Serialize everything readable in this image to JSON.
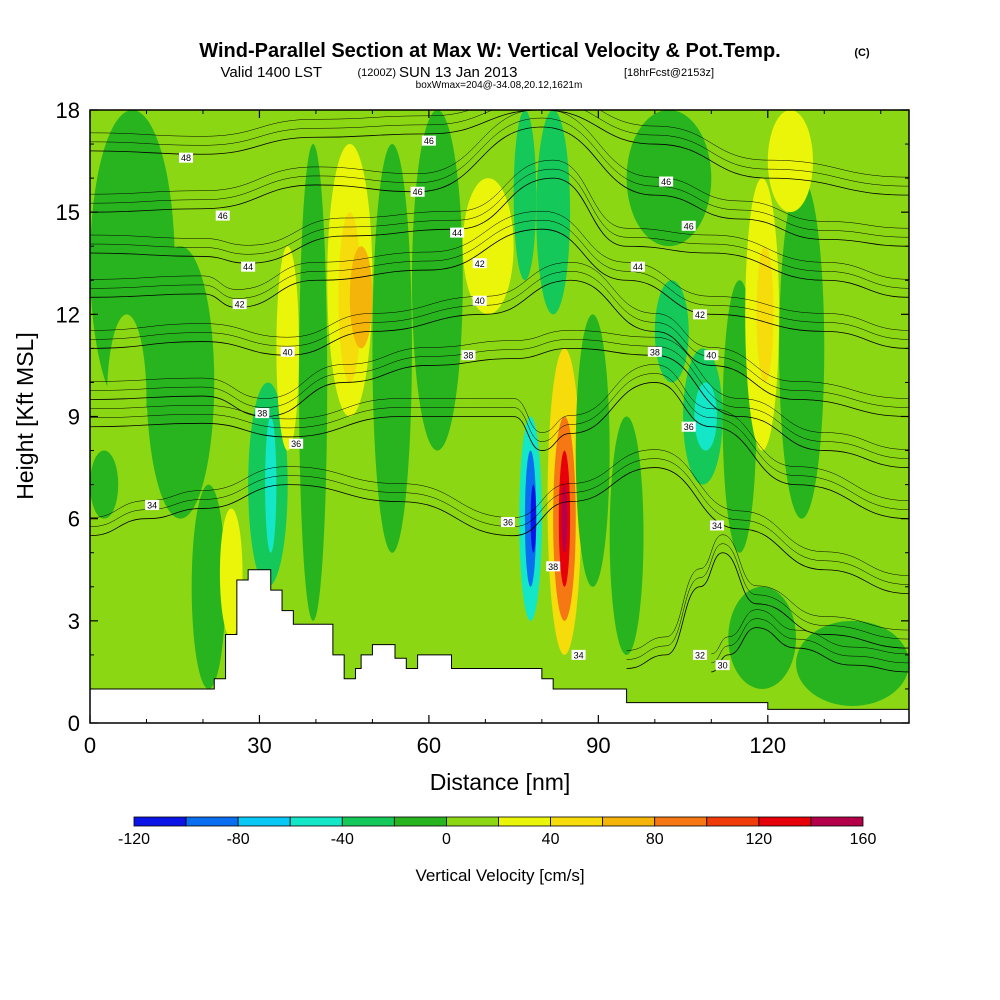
{
  "chart_data": {
    "type": "heatmap",
    "title": "Wind-Parallel Section at Max W: Vertical Velocity & Pot.Temp.",
    "title_mark": "(C)",
    "subtitle_main": "Valid 1400 LST",
    "subtitle_utc": "(1200Z)",
    "subtitle_date": "SUN 13 Jan 2013",
    "subtitle_fcst": "[18hrFcst@2153z]",
    "subtitle_box": "boxWmax=204@-34.08,20.12,1621m",
    "xlabel": "Distance [nm]",
    "ylabel": "Height [Kft MSL]",
    "xlim": [
      0,
      145
    ],
    "ylim": [
      0,
      18
    ],
    "xticks": [
      "0",
      "30",
      "60",
      "90",
      "120"
    ],
    "xtick_values": [
      0,
      30,
      60,
      90,
      120
    ],
    "yticks": [
      "0",
      "3",
      "6",
      "9",
      "12",
      "15",
      "18"
    ],
    "ytick_values": [
      0,
      3,
      6,
      9,
      12,
      15,
      18
    ],
    "colorbar": {
      "label": "Vertical Velocity [cm/s]",
      "ticks": [
        "-120",
        "-80",
        "-40",
        "0",
        "40",
        "80",
        "120",
        "160"
      ],
      "levels": [
        -120,
        -100,
        -80,
        -60,
        -40,
        -20,
        0,
        20,
        40,
        60,
        80,
        100,
        120,
        140,
        160
      ],
      "colors": [
        "#0a14e6",
        "#0a6ef0",
        "#0ac8f5",
        "#14e6c8",
        "#14c85a",
        "#28b41e",
        "#8cd714",
        "#ebf50a",
        "#f5dc0a",
        "#f5b40a",
        "#f57814",
        "#f03c0a",
        "#e6000a",
        "#b4004b"
      ]
    },
    "background_w": 5,
    "w_cells": [
      {
        "x": [
          0,
          15
        ],
        "y": [
          9,
          18
        ],
        "w": -10
      },
      {
        "x": [
          10,
          22
        ],
        "y": [
          6,
          14
        ],
        "w": -10
      },
      {
        "x": [
          3,
          10
        ],
        "y": [
          7,
          12
        ],
        "w": 5
      },
      {
        "x": [
          0,
          5
        ],
        "y": [
          6,
          8
        ],
        "w": -10
      },
      {
        "x": [
          0,
          18
        ],
        "y": [
          1,
          5
        ],
        "w": 5
      },
      {
        "x": [
          18,
          24
        ],
        "y": [
          1,
          7
        ],
        "w": -10
      },
      {
        "x": [
          23,
          27
        ],
        "y": [
          2.5,
          6.3
        ],
        "w": 30
      },
      {
        "x": [
          28,
          35
        ],
        "y": [
          4,
          10
        ],
        "w": -30
      },
      {
        "x": [
          31,
          33
        ],
        "y": [
          5,
          9
        ],
        "w": -50
      },
      {
        "x": [
          33,
          37
        ],
        "y": [
          8,
          14
        ],
        "w": 30
      },
      {
        "x": [
          37,
          42
        ],
        "y": [
          3,
          17
        ],
        "w": -10
      },
      {
        "x": [
          42,
          50
        ],
        "y": [
          9,
          17
        ],
        "w": 30
      },
      {
        "x": [
          44,
          48
        ],
        "y": [
          10,
          15
        ],
        "w": 50
      },
      {
        "x": [
          46,
          50
        ],
        "y": [
          11,
          14
        ],
        "w": 70
      },
      {
        "x": [
          50,
          57
        ],
        "y": [
          5,
          17
        ],
        "w": -10
      },
      {
        "x": [
          57,
          66
        ],
        "y": [
          8,
          18
        ],
        "w": -15
      },
      {
        "x": [
          66,
          75
        ],
        "y": [
          12,
          16
        ],
        "w": 30
      },
      {
        "x": [
          75,
          79
        ],
        "y": [
          13,
          18
        ],
        "w": -30
      },
      {
        "x": [
          79,
          85
        ],
        "y": [
          12,
          18
        ],
        "w": -30
      },
      {
        "x": [
          76,
          80
        ],
        "y": [
          3,
          9
        ],
        "w": -50
      },
      {
        "x": [
          77,
          79
        ],
        "y": [
          4,
          8
        ],
        "w": -90
      },
      {
        "x": [
          78,
          79
        ],
        "y": [
          5,
          7
        ],
        "w": -120
      },
      {
        "x": [
          81,
          87
        ],
        "y": [
          2,
          11
        ],
        "w": 50
      },
      {
        "x": [
          82,
          86
        ],
        "y": [
          3,
          9
        ],
        "w": 90
      },
      {
        "x": [
          83,
          85
        ],
        "y": [
          4,
          8
        ],
        "w": 130
      },
      {
        "x": [
          83.5,
          84.5
        ],
        "y": [
          5,
          7
        ],
        "w": 155
      },
      {
        "x": [
          86,
          92
        ],
        "y": [
          4,
          12
        ],
        "w": -15
      },
      {
        "x": [
          92,
          98
        ],
        "y": [
          2,
          9
        ],
        "w": -10
      },
      {
        "x": [
          100,
          106
        ],
        "y": [
          10,
          13
        ],
        "w": -30
      },
      {
        "x": [
          105,
          112
        ],
        "y": [
          7,
          11
        ],
        "w": -40
      },
      {
        "x": [
          107,
          111
        ],
        "y": [
          8,
          10
        ],
        "w": -50
      },
      {
        "x": [
          112,
          118
        ],
        "y": [
          5,
          13
        ],
        "w": -10
      },
      {
        "x": [
          116,
          122
        ],
        "y": [
          8,
          16
        ],
        "w": 30
      },
      {
        "x": [
          118,
          121
        ],
        "y": [
          10,
          14
        ],
        "w": 50
      },
      {
        "x": [
          122,
          130
        ],
        "y": [
          6,
          16
        ],
        "w": -10
      },
      {
        "x": [
          130,
          140
        ],
        "y": [
          4,
          12
        ],
        "w": 5
      },
      {
        "x": [
          113,
          125
        ],
        "y": [
          1,
          4
        ],
        "w": -20
      },
      {
        "x": [
          125,
          145
        ],
        "y": [
          0.5,
          3
        ],
        "w": -10
      },
      {
        "x": [
          120,
          128
        ],
        "y": [
          15,
          18
        ],
        "w": 30
      },
      {
        "x": [
          95,
          110
        ],
        "y": [
          14,
          18
        ],
        "w": -10
      }
    ],
    "terrain_kft": [
      [
        0,
        1
      ],
      [
        22,
        1
      ],
      [
        22,
        1.3
      ],
      [
        24,
        1.3
      ],
      [
        24,
        2.6
      ],
      [
        26,
        2.6
      ],
      [
        26,
        4.2
      ],
      [
        28,
        4.2
      ],
      [
        28,
        4.5
      ],
      [
        32,
        4.5
      ],
      [
        32,
        3.9
      ],
      [
        34,
        3.9
      ],
      [
        34,
        3.3
      ],
      [
        36,
        3.3
      ],
      [
        36,
        2.9
      ],
      [
        43,
        2.9
      ],
      [
        43,
        2
      ],
      [
        45,
        2
      ],
      [
        45,
        1.3
      ],
      [
        47,
        1.3
      ],
      [
        47,
        1.6
      ],
      [
        48,
        1.6
      ],
      [
        48,
        2
      ],
      [
        50,
        2
      ],
      [
        50,
        2.3
      ],
      [
        54,
        2.3
      ],
      [
        54,
        1.9
      ],
      [
        56,
        1.9
      ],
      [
        56,
        1.6
      ],
      [
        58,
        1.6
      ],
      [
        58,
        2
      ],
      [
        64,
        2
      ],
      [
        64,
        1.6
      ],
      [
        80,
        1.6
      ],
      [
        80,
        1.3
      ],
      [
        82,
        1.3
      ],
      [
        82,
        1
      ],
      [
        95,
        1
      ],
      [
        95,
        0.6
      ],
      [
        120,
        0.6
      ],
      [
        120,
        0.4
      ],
      [
        145,
        0.4
      ]
    ],
    "theta_isentropes": [
      {
        "label": "34",
        "points": [
          [
            0,
            5.5
          ],
          [
            10,
            6
          ],
          [
            20,
            6.3
          ],
          [
            35,
            7
          ],
          [
            55,
            6.5
          ],
          [
            75,
            5.5
          ],
          [
            85,
            6.5
          ],
          [
            100,
            7.5
          ],
          [
            115,
            5.7
          ],
          [
            130,
            4.5
          ],
          [
            145,
            3.8
          ]
        ]
      },
      {
        "label": "36",
        "points": [
          [
            0,
            8.7
          ],
          [
            20,
            8.8
          ],
          [
            35,
            8.4
          ],
          [
            55,
            9
          ],
          [
            75,
            9
          ],
          [
            80,
            8
          ],
          [
            85,
            8.5
          ],
          [
            100,
            10
          ],
          [
            110,
            8.7
          ],
          [
            125,
            7
          ],
          [
            145,
            6
          ]
        ]
      },
      {
        "label": "38",
        "points": [
          [
            0,
            9.5
          ],
          [
            20,
            9.6
          ],
          [
            31,
            9
          ],
          [
            45,
            10
          ],
          [
            60,
            10.5
          ],
          [
            75,
            10.7
          ],
          [
            85,
            11
          ],
          [
            100,
            10.8
          ],
          [
            115,
            9
          ],
          [
            130,
            8
          ],
          [
            145,
            7.5
          ]
        ]
      },
      {
        "label": "40",
        "points": [
          [
            0,
            11
          ],
          [
            20,
            11.2
          ],
          [
            35,
            10.8
          ],
          [
            50,
            11.5
          ],
          [
            70,
            12
          ],
          [
            85,
            13
          ],
          [
            100,
            11.5
          ],
          [
            110,
            10.5
          ],
          [
            125,
            9.5
          ],
          [
            145,
            9
          ]
        ]
      },
      {
        "label": "42",
        "points": [
          [
            0,
            12.5
          ],
          [
            20,
            12.6
          ],
          [
            26,
            12.2
          ],
          [
            40,
            13
          ],
          [
            60,
            13.3
          ],
          [
            80,
            14.5
          ],
          [
            95,
            13
          ],
          [
            110,
            12
          ],
          [
            130,
            11.5
          ],
          [
            145,
            11
          ]
        ]
      },
      {
        "label": "44",
        "points": [
          [
            0,
            13.8
          ],
          [
            20,
            13.7
          ],
          [
            28,
            13.5
          ],
          [
            45,
            14.3
          ],
          [
            65,
            14.5
          ],
          [
            82,
            16
          ],
          [
            95,
            14
          ],
          [
            110,
            13.8
          ],
          [
            130,
            13
          ],
          [
            145,
            12.5
          ]
        ]
      },
      {
        "label": "46",
        "points": [
          [
            0,
            15
          ],
          [
            20,
            15.1
          ],
          [
            40,
            15.8
          ],
          [
            58,
            15.6
          ],
          [
            80,
            17.5
          ],
          [
            100,
            15.5
          ],
          [
            115,
            14.8
          ],
          [
            130,
            14.2
          ],
          [
            145,
            14
          ]
        ]
      },
      {
        "label": "48",
        "points": [
          [
            0,
            16.8
          ],
          [
            20,
            16.7
          ],
          [
            40,
            17.2
          ],
          [
            60,
            17.3
          ],
          [
            80,
            18
          ],
          [
            100,
            17
          ],
          [
            120,
            16
          ],
          [
            145,
            15.5
          ]
        ]
      },
      {
        "label": "32",
        "points": [
          [
            95,
            1.6
          ],
          [
            102,
            2
          ],
          [
            108,
            4
          ],
          [
            112,
            5
          ],
          [
            118,
            3.5
          ],
          [
            130,
            2.6
          ],
          [
            145,
            2.2
          ]
        ]
      },
      {
        "label": "30",
        "points": [
          [
            110,
            1.5
          ],
          [
            113,
            2
          ],
          [
            118,
            2.8
          ],
          [
            125,
            2.2
          ],
          [
            135,
            1.7
          ],
          [
            145,
            1.5
          ]
        ]
      }
    ],
    "contour_labels": [
      {
        "text": "48",
        "x": 17,
        "y": 16.6
      },
      {
        "text": "46",
        "x": 23.5,
        "y": 14.9
      },
      {
        "text": "44",
        "x": 28,
        "y": 13.4
      },
      {
        "text": "42",
        "x": 26.5,
        "y": 12.3
      },
      {
        "text": "40",
        "x": 35,
        "y": 10.9
      },
      {
        "text": "38",
        "x": 30.5,
        "y": 9.1
      },
      {
        "text": "36",
        "x": 36.5,
        "y": 8.2
      },
      {
        "text": "34",
        "x": 11,
        "y": 6.4
      },
      {
        "text": "46",
        "x": 60,
        "y": 17.1
      },
      {
        "text": "46",
        "x": 58,
        "y": 15.6
      },
      {
        "text": "44",
        "x": 65,
        "y": 14.4
      },
      {
        "text": "42",
        "x": 69,
        "y": 13.5
      },
      {
        "text": "40",
        "x": 69,
        "y": 12.4
      },
      {
        "text": "38",
        "x": 67,
        "y": 10.8
      },
      {
        "text": "36",
        "x": 74,
        "y": 5.9
      },
      {
        "text": "38",
        "x": 82,
        "y": 4.6
      },
      {
        "text": "34",
        "x": 86.5,
        "y": 2
      },
      {
        "text": "46",
        "x": 102,
        "y": 15.9
      },
      {
        "text": "46",
        "x": 106,
        "y": 14.6
      },
      {
        "text": "44",
        "x": 97,
        "y": 13.4
      },
      {
        "text": "42",
        "x": 108,
        "y": 12
      },
      {
        "text": "40",
        "x": 110,
        "y": 10.8
      },
      {
        "text": "38",
        "x": 100,
        "y": 10.9
      },
      {
        "text": "36",
        "x": 106,
        "y": 8.7
      },
      {
        "text": "34",
        "x": 111,
        "y": 5.8
      },
      {
        "text": "32",
        "x": 108,
        "y": 2
      },
      {
        "text": "30",
        "x": 112,
        "y": 1.7
      }
    ]
  }
}
